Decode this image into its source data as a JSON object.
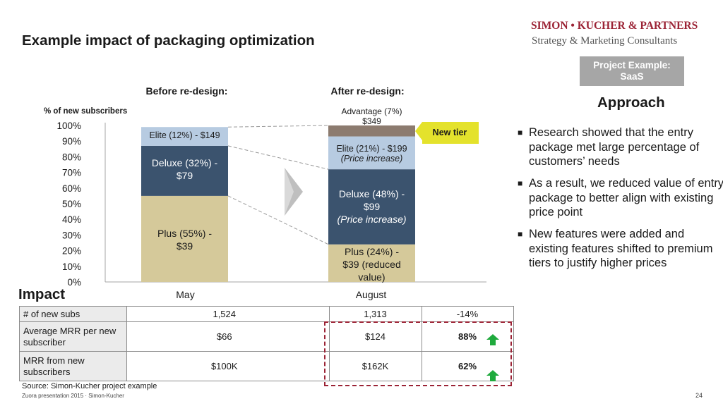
{
  "page": {
    "title": "Example impact of packaging optimization",
    "logo": {
      "line1": "SIMON • KUCHER & PARTNERS",
      "line2": "Strategy & Marketing Consultants"
    },
    "project_box": {
      "line1": "Project Example:",
      "line2": "SaaS"
    },
    "approach": {
      "title": "Approach",
      "bullets": [
        "Research showed that the entry package met large percentage of customers’ needs",
        "As a result, we reduced value of entry package to better align with existing price point",
        "New features were added and existing features shifted to premium tiers to justify higher prices"
      ]
    },
    "impact_label": "Impact",
    "source": "Source: Simon-Kucher project example",
    "footer": "Zuora presentation 2015 · Simon-Kucher",
    "page_number": "24"
  },
  "impact_table": {
    "rows": [
      {
        "label": "# of new subs",
        "may": "1,524",
        "august": "1,313",
        "change": "-14%",
        "highlight": false
      },
      {
        "label": "Average MRR per new subscriber",
        "may": "$66",
        "august": "$124",
        "change": "88%",
        "highlight": true
      },
      {
        "label": "MRR from new subscribers",
        "may": "$100K",
        "august": "$162K",
        "change": "62%",
        "highlight": true
      }
    ]
  },
  "colors": {
    "plus": "#d5c99a",
    "deluxe": "#3b536e",
    "elite": "#b7cbe1",
    "advantage": "#8c7b6f",
    "new_tier_box": "#e4e22c",
    "arrow_green": "#1faa3d",
    "dash_red": "#9b2335",
    "project_box": "#a6a6a6"
  },
  "chart_data": {
    "type": "bar",
    "stacked": true,
    "ylabel": "% of new subscribers",
    "ylim": [
      0,
      100
    ],
    "y_ticks": [
      "0%",
      "10%",
      "20%",
      "30%",
      "40%",
      "50%",
      "60%",
      "70%",
      "80%",
      "90%",
      "100%"
    ],
    "categories": [
      "May",
      "August"
    ],
    "category_headers": [
      "Before re-design:",
      "After re-design:"
    ],
    "series": [
      {
        "name": "Plus",
        "values": [
          55,
          24
        ],
        "labels": [
          "Plus (55%) - $39",
          "Plus (24%) - $39 (reduced value)"
        ],
        "color": "#d5c99a",
        "text_color": "#1a1a1a"
      },
      {
        "name": "Deluxe",
        "values": [
          32,
          48
        ],
        "labels": [
          "Deluxe (32%) - $79",
          "Deluxe (48%) - $99"
        ],
        "sublabels": [
          "",
          "(Price increase)"
        ],
        "color": "#3b536e",
        "text_color": "#ffffff"
      },
      {
        "name": "Elite",
        "values": [
          12,
          21
        ],
        "labels": [
          "Elite (12%) - $149",
          "Elite (21%) - $199"
        ],
        "sublabels": [
          "",
          "(Price increase)"
        ],
        "color": "#b7cbe1",
        "text_color": "#1a1a1a"
      },
      {
        "name": "Advantage",
        "values": [
          0,
          7
        ],
        "labels": [
          "",
          "$349"
        ],
        "color": "#8c7b6f",
        "text_color": "#1a1a1a"
      }
    ],
    "annotations": {
      "advantage_label": "Advantage (7%)",
      "new_tier": "New tier"
    }
  }
}
